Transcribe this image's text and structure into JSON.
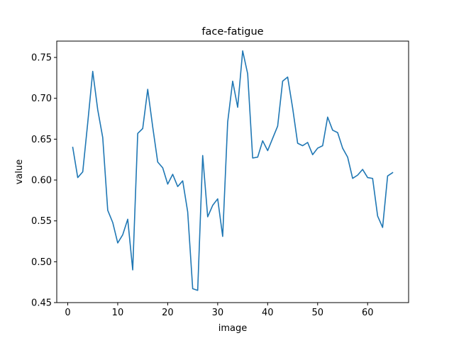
{
  "chart_data": {
    "type": "line",
    "title": "face-fatigue",
    "xlabel": "image",
    "ylabel": "value",
    "xlim": [
      -2.2,
      68.2
    ],
    "ylim": [
      0.45,
      0.77
    ],
    "xticks": [
      0,
      10,
      20,
      30,
      40,
      50,
      60
    ],
    "yticks": [
      0.45,
      0.5,
      0.55,
      0.6,
      0.65,
      0.7,
      0.75
    ],
    "ytick_labels": [
      "0.45",
      "0.50",
      "0.55",
      "0.60",
      "0.65",
      "0.70",
      "0.75"
    ],
    "grid": false,
    "colors": {
      "line": "#1f77b4",
      "axes": "#000000",
      "background": "#ffffff"
    },
    "series": [
      {
        "x": [
          1,
          2,
          3,
          4,
          5,
          6,
          7,
          8,
          9,
          10,
          11,
          12,
          13,
          14,
          15,
          16,
          17,
          18,
          19,
          20,
          21,
          22,
          23,
          24,
          25,
          26,
          27,
          28,
          29,
          30,
          31,
          32,
          33,
          34,
          35,
          36,
          37,
          38,
          39,
          40,
          41,
          42,
          43,
          44,
          45,
          46,
          47,
          48,
          49,
          50,
          51,
          52,
          53,
          54,
          55,
          56,
          57,
          58,
          59,
          60,
          61,
          62,
          63,
          64,
          65
        ],
        "values": [
          0.64,
          0.603,
          0.61,
          0.67,
          0.733,
          0.686,
          0.652,
          0.563,
          0.548,
          0.523,
          0.533,
          0.552,
          0.49,
          0.657,
          0.663,
          0.711,
          0.665,
          0.622,
          0.615,
          0.595,
          0.607,
          0.592,
          0.599,
          0.561,
          0.467,
          0.465,
          0.63,
          0.555,
          0.569,
          0.577,
          0.531,
          0.671,
          0.721,
          0.689,
          0.758,
          0.73,
          0.627,
          0.628,
          0.648,
          0.636,
          0.651,
          0.666,
          0.721,
          0.726,
          0.688,
          0.645,
          0.642,
          0.646,
          0.631,
          0.639,
          0.642,
          0.677,
          0.661,
          0.658,
          0.639,
          0.628,
          0.602,
          0.606,
          0.613,
          0.603,
          0.602,
          0.556,
          0.542,
          0.605,
          0.609
        ]
      }
    ]
  }
}
